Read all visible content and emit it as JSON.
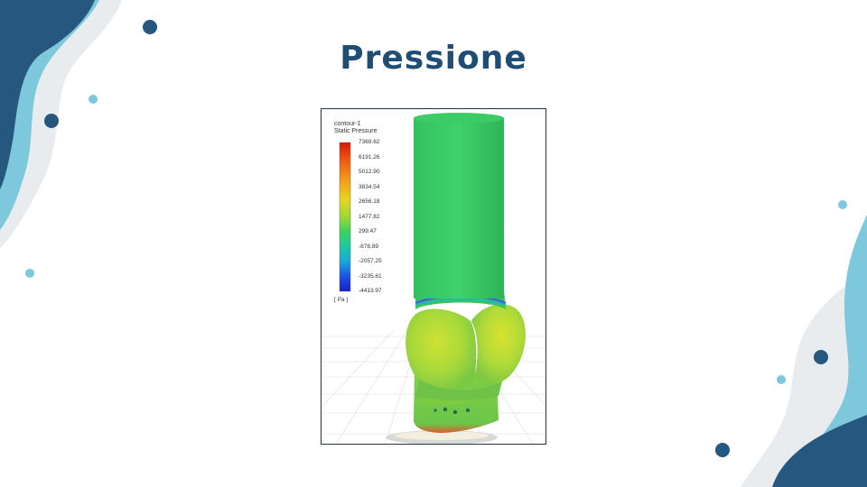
{
  "slide": {
    "title": "Pressione"
  },
  "figure": {
    "legend": {
      "name": "contour-1",
      "quantity": "Static Pressure",
      "ticks": [
        "7369.62",
        "6191.26",
        "5012.90",
        "3834.54",
        "2656.18",
        "1477.82",
        "299.47",
        "-878.89",
        "-2057.25",
        "-3235.61",
        "-4413.97"
      ],
      "unit": "[ Pa ]"
    }
  },
  "colors": {
    "accent_dark": "#26587f",
    "accent_light": "#7ec8dc",
    "shape_grey": "#e9ecef",
    "title": "#1f4d74"
  }
}
